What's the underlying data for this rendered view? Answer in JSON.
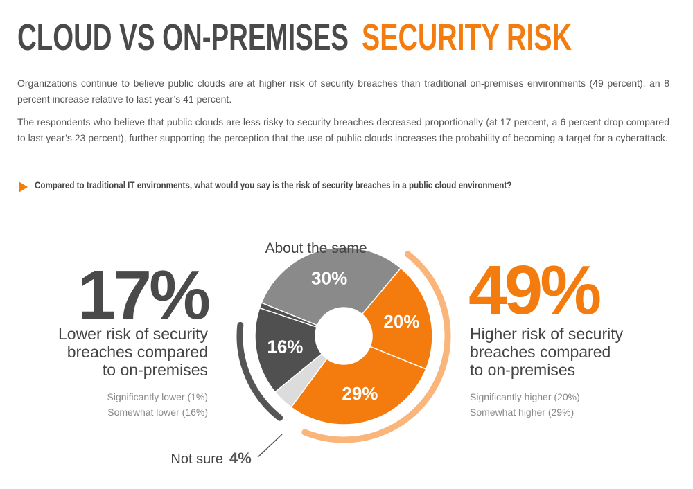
{
  "header": {
    "title_dark": "CLOUD VS ON-PREMISES",
    "title_accent": "SECURITY RISK",
    "paragraphs": [
      "Organizations continue to believe public clouds are at higher risk of security breaches than traditional on-premises environments (49 percent), an 8 percent increase relative to last year’s 41 percent.",
      "The respondents who believe that public clouds are less risky to security breaches decreased proportionally (at 17 percent, a 6 percent drop compared to last year’s 23 percent), further supporting the perception that the use of public clouds increases the probability of becoming a target for a cyberattack."
    ],
    "question": "Compared to traditional IT environments, what would you say is the risk of security breaches in a public cloud environment?"
  },
  "left_summary": {
    "value": "17%",
    "lines": [
      "Lower risk of security",
      "breaches compared",
      "to on-premises"
    ]
  },
  "right_summary": {
    "value": "49%",
    "lines": [
      "Higher risk of security",
      "breaches compared",
      "to on-premises"
    ]
  },
  "chart_data": {
    "type": "pie",
    "categories": [
      "Significantly higher (20%)",
      "Somewhat higher (29%)",
      "Not sure",
      "Somewhat lower (16%)",
      "Significantly lower (1%)",
      "About the same"
    ],
    "values": [
      20,
      29,
      4,
      16,
      1,
      30
    ],
    "value_labels": [
      "20%",
      "29%",
      "4%",
      "16%",
      null,
      "30%"
    ],
    "colors": [
      "#f47c0e",
      "#f47c0e",
      "#dcdcdc",
      "#505050",
      "#505050",
      "#8a8a8a"
    ]
  }
}
